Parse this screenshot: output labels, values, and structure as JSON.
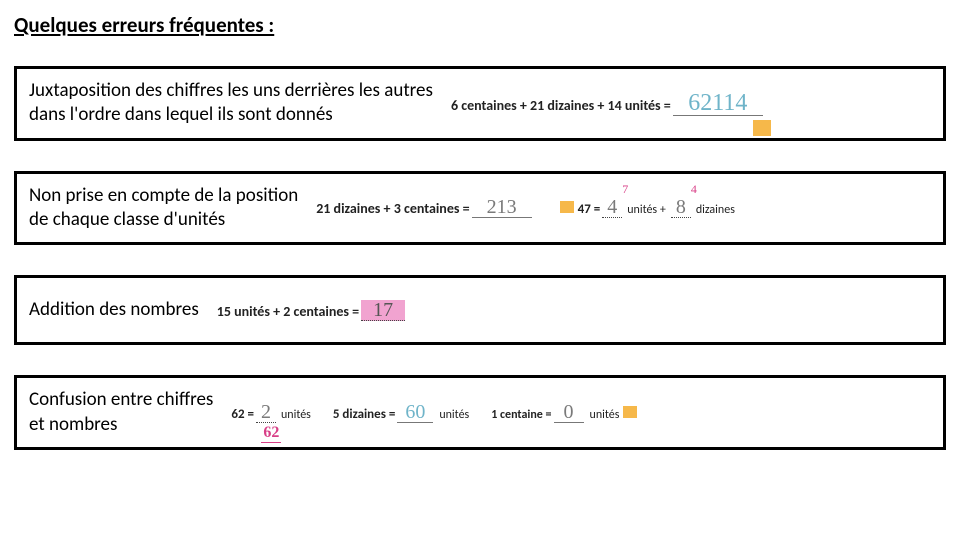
{
  "title": "Quelques erreurs fréquentes :",
  "row1": {
    "desc": "Juxtaposition des chiffres les uns derrières les autres\ndans l'ordre dans lequel ils sont donnés",
    "formula": "6 centaines + 21 dizaines + 14 unités =",
    "answer": "62114"
  },
  "row2": {
    "desc": "Non prise en compte de la position\nde chaque classe d'unités",
    "f1": "21 dizaines + 3 centaines =",
    "a1": "213",
    "f2_pre": "47 =",
    "f2_ans1": "4",
    "f2_sup1": "7",
    "f2_lbl1": "unités +",
    "f2_ans2": "8",
    "f2_sup2": "4",
    "f2_lbl2": "dizaines"
  },
  "row3": {
    "desc": "Addition des nombres",
    "formula": "15 unités + 2 centaines =",
    "answer": "17"
  },
  "row4": {
    "desc": "Confusion entre chiffres\net nombres",
    "f1_pre": "62 =",
    "f1_ans": "2",
    "f1_lbl": "unités",
    "f1_below": "62",
    "f2_pre": "5 dizaines  =",
    "f2_ans": "60",
    "f2_lbl": "unités",
    "f3_pre": "1 centaine =",
    "f3_ans": "0",
    "f3_lbl": "unités"
  }
}
